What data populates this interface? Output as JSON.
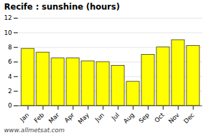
{
  "chart_data": {
    "type": "bar",
    "title": "Recife : sunshine (hours)",
    "categories": [
      "Jan",
      "Feb",
      "Mar",
      "Apr",
      "May",
      "Jun",
      "Jul",
      "Aug",
      "Sep",
      "Oct",
      "Nov",
      "Dec"
    ],
    "values": [
      7.8,
      7.3,
      6.5,
      6.5,
      6.1,
      6.0,
      5.5,
      3.3,
      7.0,
      8.0,
      9.0,
      8.2
    ],
    "color": "#ffff00",
    "ylim": [
      0,
      12
    ],
    "yticks": [
      0,
      2,
      4,
      6,
      8,
      10,
      12
    ],
    "grid": true,
    "annotation": "www.allmetsat.com"
  }
}
